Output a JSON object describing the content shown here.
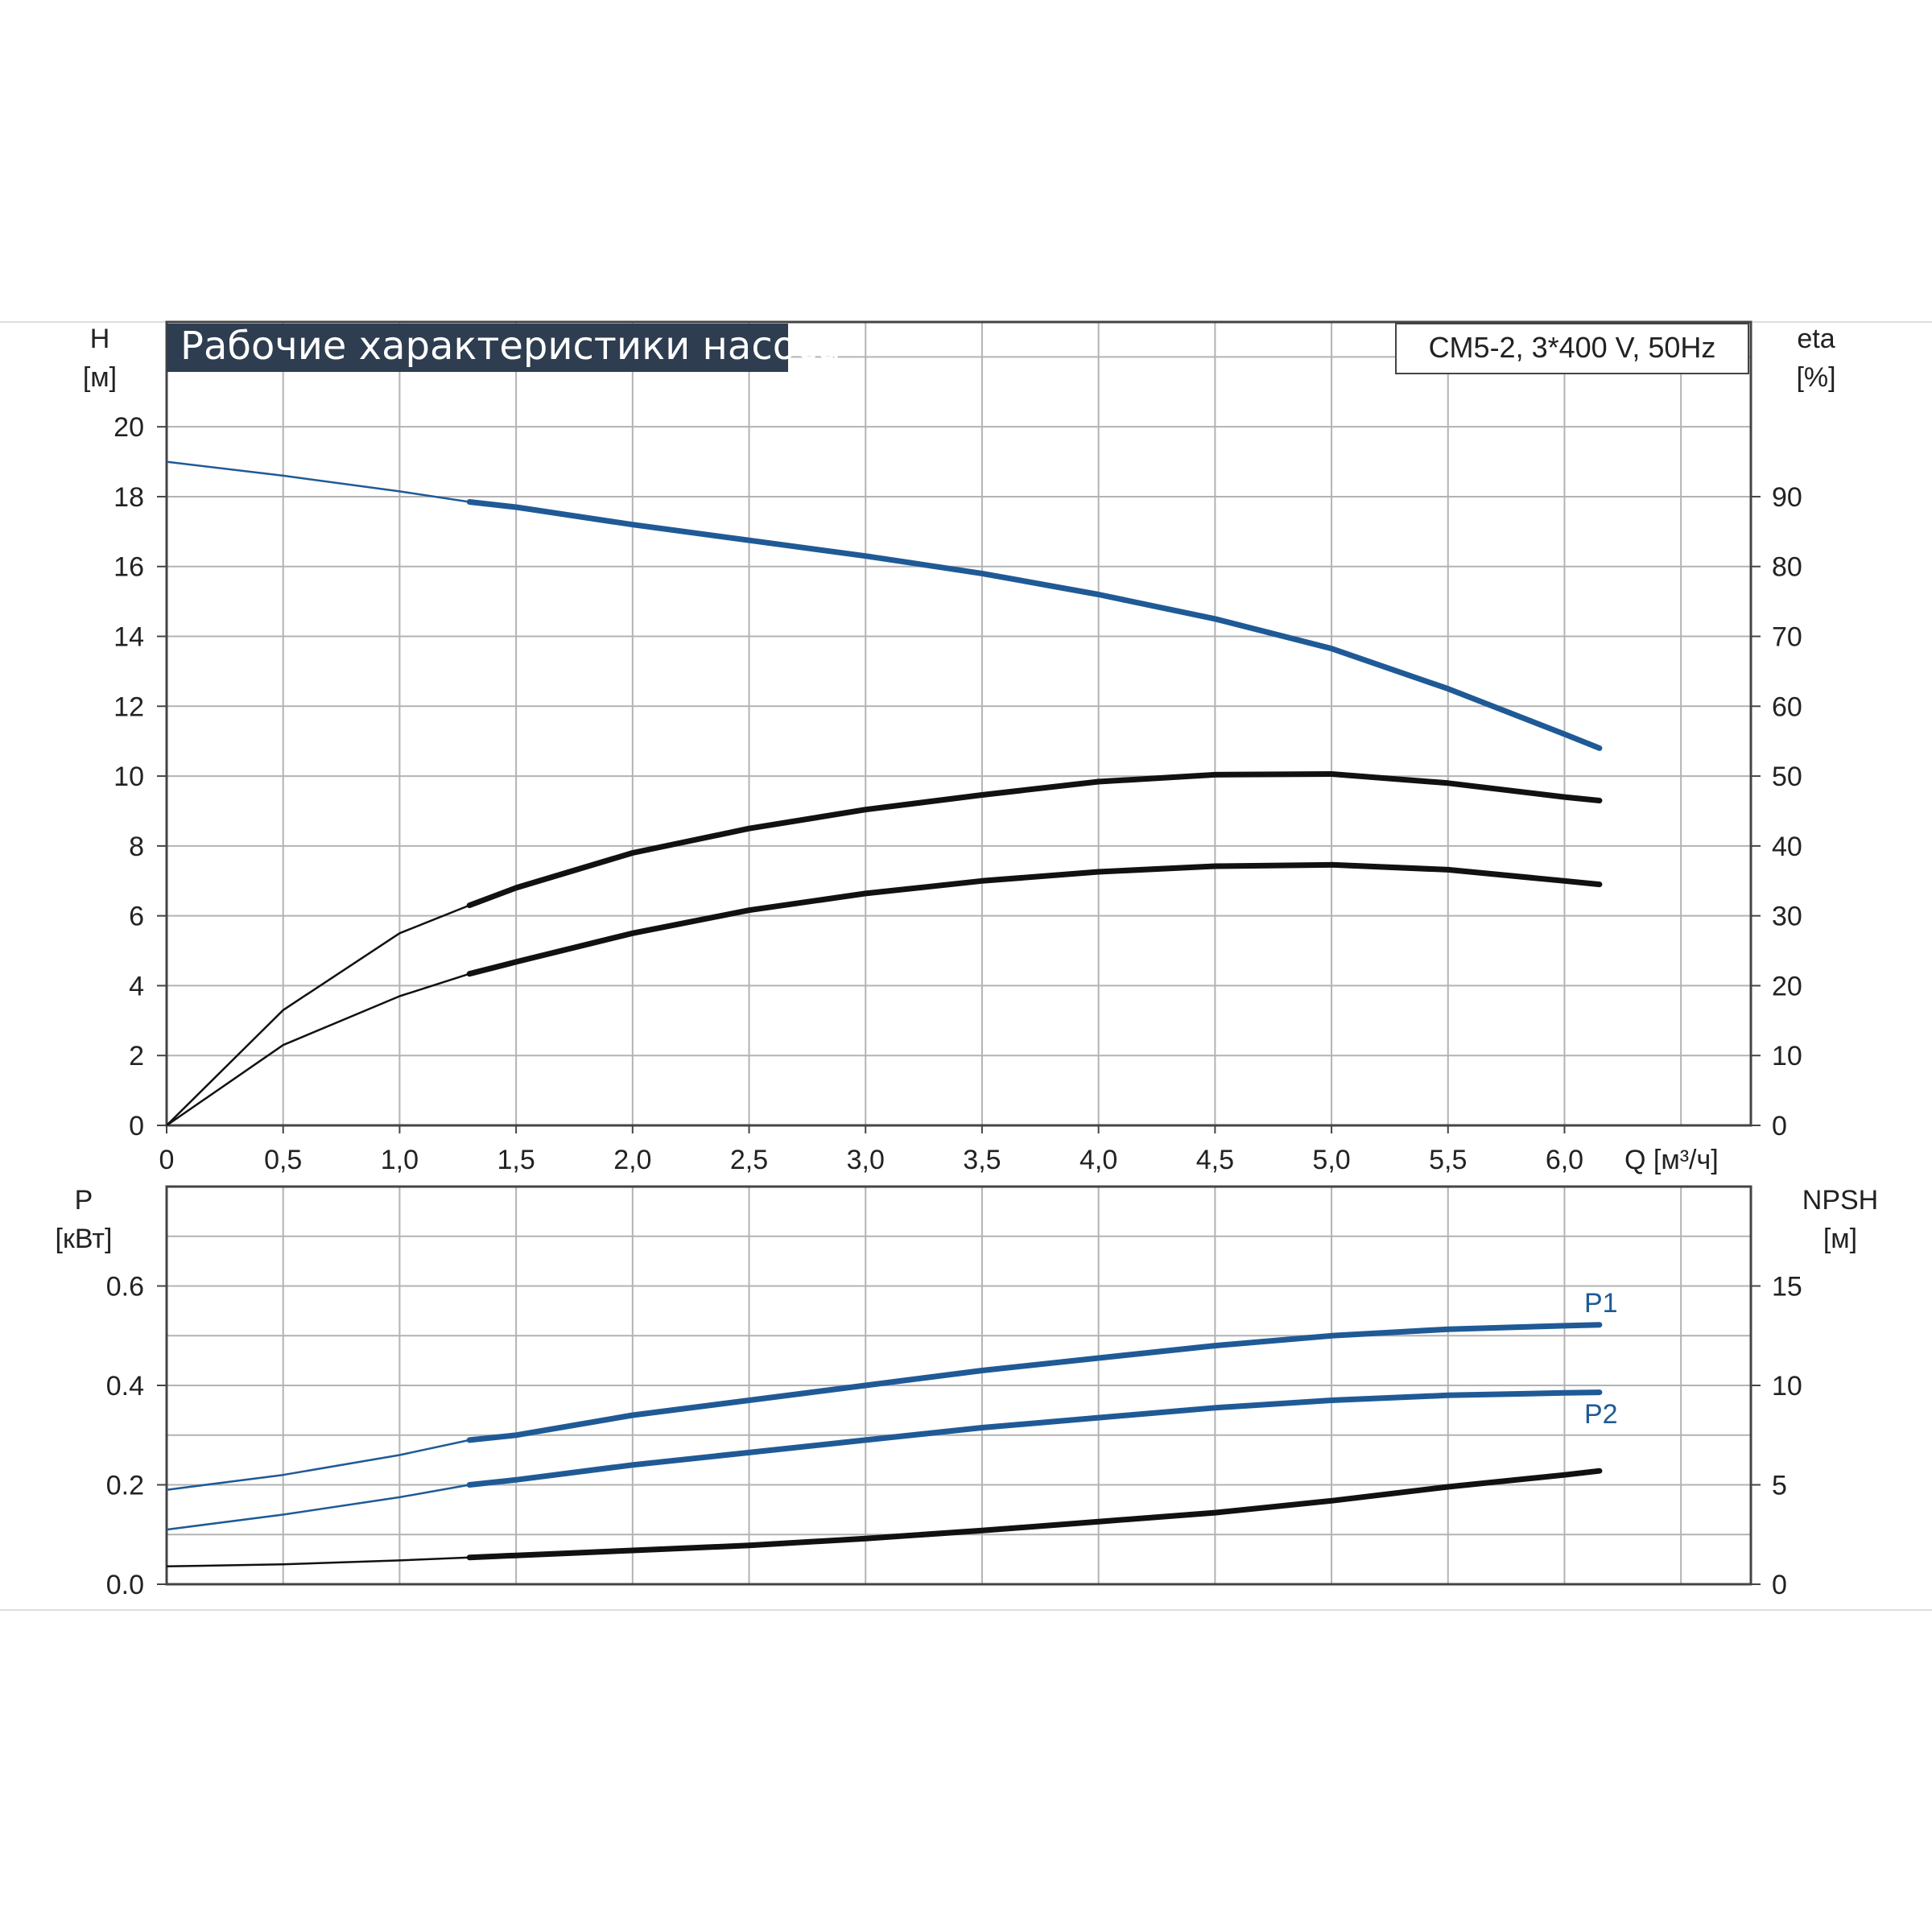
{
  "title": "Рабочие характеристики насоса",
  "model": "CM5-2, 3*400 V, 50Hz",
  "colors": {
    "blue": "#1f5a96",
    "black": "#111111",
    "title_bg": "#2e3d50",
    "grid": "#b3b3b3"
  },
  "top_panel": {
    "y_left_label": "H",
    "y_left_unit": "[м]",
    "y_right_label": "eta",
    "y_right_unit": "[%]",
    "x_label": "Q [м³/ч]",
    "x_ticks": [
      "0",
      "0,5",
      "1,0",
      "1,5",
      "2,0",
      "2,5",
      "3,0",
      "3,5",
      "4,0",
      "4,5",
      "5,0",
      "5,5",
      "6,0"
    ],
    "y_left_ticks": [
      "0",
      "2",
      "4",
      "6",
      "8",
      "10",
      "12",
      "14",
      "16",
      "18",
      "20"
    ],
    "y_right_ticks": [
      "0",
      "10",
      "20",
      "30",
      "40",
      "50",
      "60",
      "70",
      "80",
      "90"
    ]
  },
  "bottom_panel": {
    "y_left_label": "P",
    "y_left_unit": "[кВт]",
    "y_right_label": "NPSH",
    "y_right_unit": "[м]",
    "y_left_ticks": [
      "0.0",
      "0.2",
      "0.4",
      "0.6"
    ],
    "y_right_ticks": [
      "0",
      "5",
      "10",
      "15"
    ],
    "curve_labels": {
      "p1": "P1",
      "p2": "P2"
    }
  },
  "chart_data": [
    {
      "type": "line",
      "x_range": [
        0,
        6.8
      ],
      "ylim_left": [
        0,
        23
      ],
      "ylim_right": [
        0,
        115
      ],
      "grid": true,
      "series": [
        {
          "name": "H",
          "axis": "left",
          "color": "blue",
          "operating_range": [
            1.3,
            6.15
          ],
          "x": [
            0,
            0.5,
            1.0,
            1.3,
            1.5,
            2.0,
            2.5,
            3.0,
            3.5,
            4.0,
            4.5,
            5.0,
            5.5,
            6.0,
            6.15
          ],
          "y": [
            19.0,
            18.6,
            18.15,
            17.85,
            17.7,
            17.2,
            16.75,
            16.3,
            15.8,
            15.2,
            14.5,
            13.65,
            12.5,
            11.2,
            10.8
          ]
        },
        {
          "name": "eta",
          "axis": "right",
          "color": "black",
          "operating_range": [
            1.3,
            6.15
          ],
          "x": [
            0,
            0.5,
            1.0,
            1.3,
            1.5,
            2.0,
            2.5,
            3.0,
            3.5,
            4.0,
            4.5,
            5.0,
            5.5,
            6.0,
            6.15
          ],
          "y": [
            0,
            16.5,
            27.5,
            31.5,
            34,
            39,
            42.5,
            45.2,
            47.3,
            49.2,
            50.2,
            50.3,
            49.0,
            47.0,
            46.5
          ]
        },
        {
          "axis": "right",
          "color": "black",
          "operating_range": [
            1.3,
            6.15
          ],
          "x": [
            0,
            0.5,
            1.0,
            1.3,
            1.5,
            2.0,
            2.5,
            3.0,
            3.5,
            4.0,
            4.5,
            5.0,
            5.5,
            6.0,
            6.15
          ],
          "y": [
            0,
            11.5,
            18.5,
            21.7,
            23.4,
            27.5,
            30.8,
            33.2,
            35.0,
            36.3,
            37.1,
            37.3,
            36.6,
            35.0,
            34.5
          ]
        }
      ]
    },
    {
      "type": "line",
      "x_range": [
        0,
        6.8
      ],
      "ylim_left": [
        0,
        0.8
      ],
      "ylim_right": [
        0,
        20
      ],
      "grid": true,
      "series": [
        {
          "name": "P1",
          "axis": "left",
          "color": "blue",
          "operating_range": [
            1.3,
            6.15
          ],
          "x": [
            0,
            0.5,
            1.0,
            1.3,
            1.5,
            2.0,
            2.5,
            3.0,
            3.5,
            4.0,
            4.5,
            5.0,
            5.5,
            6.0,
            6.15
          ],
          "y": [
            0.19,
            0.22,
            0.26,
            0.29,
            0.3,
            0.34,
            0.37,
            0.4,
            0.43,
            0.455,
            0.48,
            0.5,
            0.513,
            0.52,
            0.522
          ]
        },
        {
          "name": "P2",
          "axis": "left",
          "color": "blue",
          "operating_range": [
            1.3,
            6.15
          ],
          "x": [
            0,
            0.5,
            1.0,
            1.3,
            1.5,
            2.0,
            2.5,
            3.0,
            3.5,
            4.0,
            4.5,
            5.0,
            5.5,
            6.0,
            6.15
          ],
          "y": [
            0.11,
            0.14,
            0.175,
            0.2,
            0.21,
            0.24,
            0.265,
            0.29,
            0.315,
            0.335,
            0.355,
            0.37,
            0.38,
            0.385,
            0.386
          ]
        },
        {
          "name": "NPSH",
          "axis": "right",
          "color": "black",
          "operating_range": [
            1.3,
            6.15
          ],
          "x": [
            0,
            0.5,
            1.0,
            1.3,
            1.5,
            2.0,
            2.5,
            3.0,
            3.5,
            4.0,
            4.5,
            5.0,
            5.5,
            6.0,
            6.15
          ],
          "y": [
            0.9,
            1.0,
            1.2,
            1.35,
            1.45,
            1.7,
            1.95,
            2.3,
            2.7,
            3.15,
            3.6,
            4.2,
            4.9,
            5.5,
            5.7
          ]
        }
      ]
    }
  ]
}
